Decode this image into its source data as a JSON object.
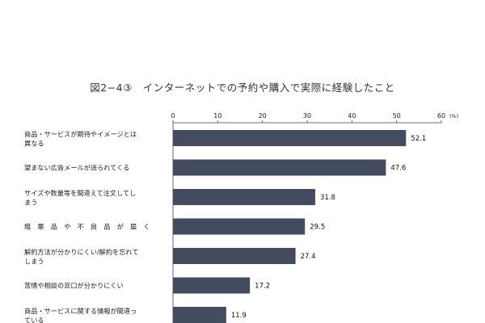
{
  "chart_data": {
    "type": "bar",
    "orientation": "horizontal",
    "title": "図2−4③　インターネットでの予約や購入で実際に経験したこと",
    "unit": "(%)",
    "xlim": [
      0,
      60
    ],
    "ticks": [
      "0",
      "10",
      "20",
      "30",
      "40",
      "50",
      "60"
    ],
    "categories": [
      [
        "商品・サービスが期待やイメージとは",
        "異なる"
      ],
      [
        "望まない広告メールが送られてくる"
      ],
      [
        "サイズや数量等を間違えて注文してし",
        "まう"
      ],
      [
        "粗　悪　品　や　不　良　品　が　届　く"
      ],
      [
        "解約方法が分かりにくい/解約を忘れて",
        "しまう"
      ],
      [
        "苦情や相談の窓口が分かりにくい"
      ],
      [
        "商品・サービスに関する情報が間違っ",
        "ている"
      ]
    ],
    "values": [
      52.1,
      47.6,
      31.8,
      29.5,
      27.4,
      17.2,
      11.9
    ],
    "value_labels": [
      "52.1",
      "47.6",
      "31.8",
      "29.5",
      "27.4",
      "17.2",
      "11.9"
    ],
    "bar_color": "#434c5e",
    "grid": false
  }
}
